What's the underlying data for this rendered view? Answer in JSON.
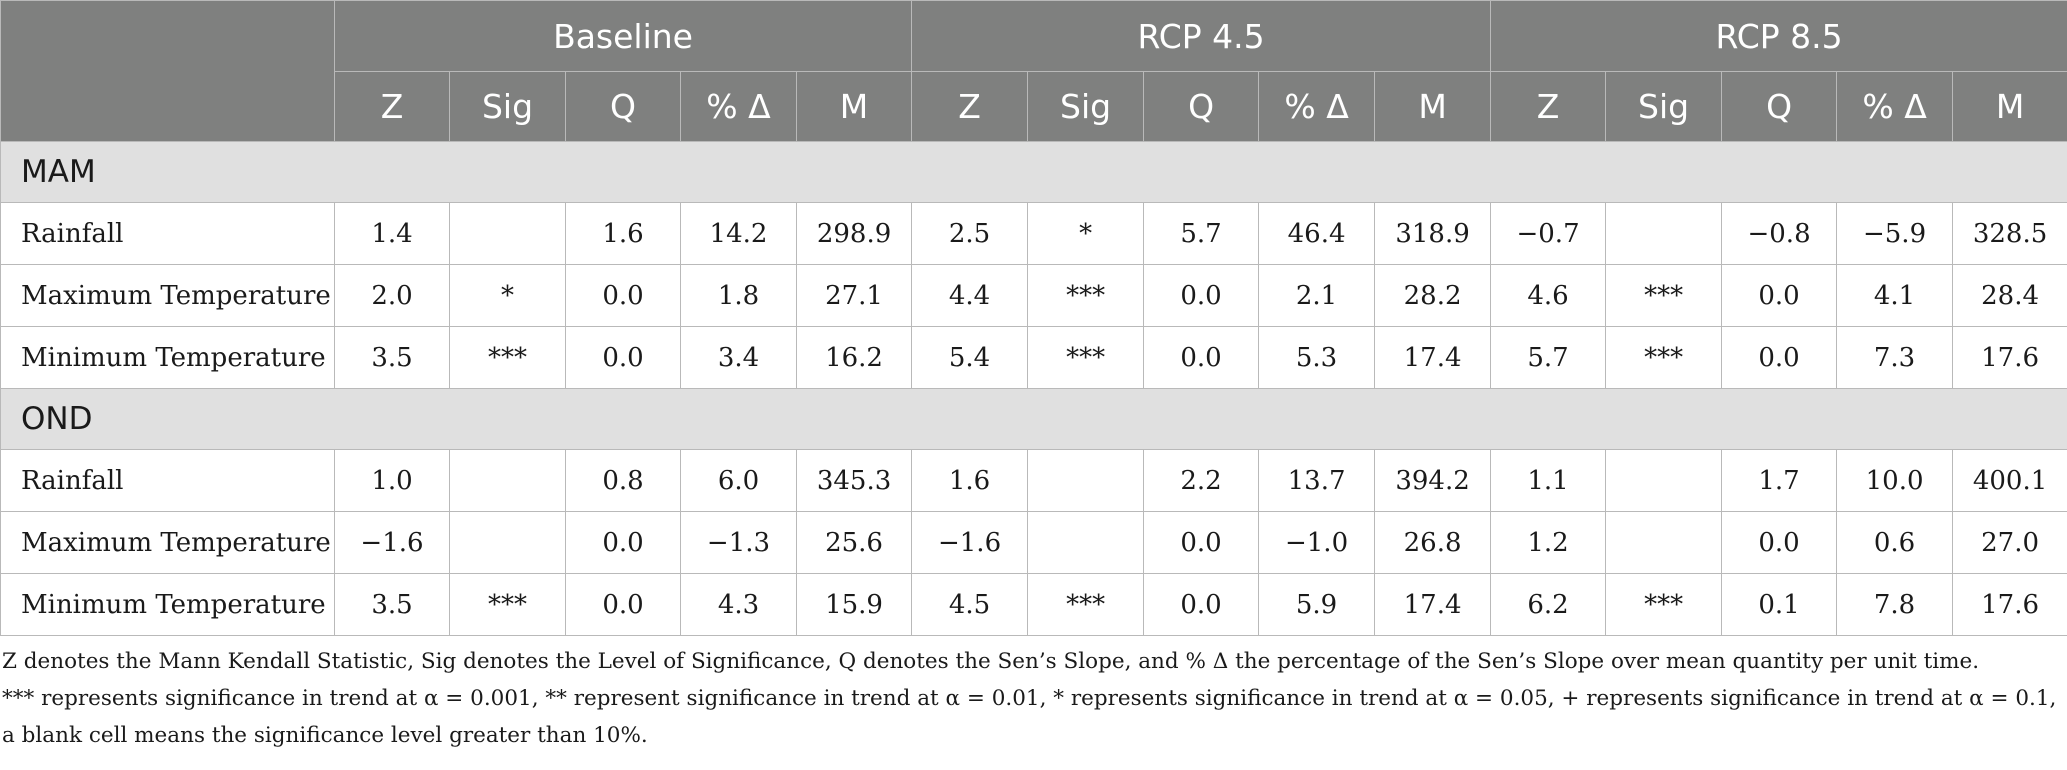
{
  "table": {
    "groups": [
      "Baseline",
      "RCP 4.5",
      "RCP 8.5"
    ],
    "subheaders": [
      "Z",
      "Sig",
      "Q",
      "% Δ",
      "M",
      "Z",
      "Sig",
      "Q",
      "% Δ",
      "M",
      "Z",
      "Sig",
      "Q",
      "% Δ",
      "M"
    ],
    "sections": [
      {
        "name": "MAM",
        "rows": [
          {
            "label": "Rainfall",
            "cells": [
              "1.4",
              "",
              "1.6",
              "14.2",
              "298.9",
              "2.5",
              "*",
              "5.7",
              "46.4",
              "318.9",
              "−0.7",
              "",
              "−0.8",
              "−5.9",
              "328.5"
            ]
          },
          {
            "label": "Maximum Temperature",
            "cells": [
              "2.0",
              "*",
              "0.0",
              "1.8",
              "27.1",
              "4.4",
              "***",
              "0.0",
              "2.1",
              "28.2",
              "4.6",
              "***",
              "0.0",
              "4.1",
              "28.4"
            ]
          },
          {
            "label": "Minimum Temperature",
            "cells": [
              "3.5",
              "***",
              "0.0",
              "3.4",
              "16.2",
              "5.4",
              "***",
              "0.0",
              "5.3",
              "17.4",
              "5.7",
              "***",
              "0.0",
              "7.3",
              "17.6"
            ]
          }
        ]
      },
      {
        "name": "OND",
        "rows": [
          {
            "label": "Rainfall",
            "cells": [
              "1.0",
              "",
              "0.8",
              "6.0",
              "345.3",
              "1.6",
              "",
              "2.2",
              "13.7",
              "394.2",
              "1.1",
              "",
              "1.7",
              "10.0",
              "400.1"
            ]
          },
          {
            "label": "Maximum Temperature",
            "cells": [
              "−1.6",
              "",
              "0.0",
              "−1.3",
              "25.6",
              "−1.6",
              "",
              "0.0",
              "−1.0",
              "26.8",
              "1.2",
              "",
              "0.0",
              "0.6",
              "27.0"
            ]
          },
          {
            "label": "Minimum Temperature",
            "cells": [
              "3.5",
              "***",
              "0.0",
              "4.3",
              "15.9",
              "4.5",
              "***",
              "0.0",
              "5.9",
              "17.4",
              "6.2",
              "***",
              "0.1",
              "7.8",
              "17.6"
            ]
          }
        ]
      }
    ]
  },
  "footnotes": [
    "Z denotes the Mann Kendall Statistic, Sig denotes the Level of Significance, Q denotes the Sen’s Slope, and % Δ the percentage of the Sen’s Slope over mean quantity per unit time.",
    "*** represents significance in trend at α = 0.001, ** represent significance in trend at α = 0.01, * represents significance in trend at α = 0.05, + represents significance in trend at α = 0.1, a blank cell means the significance level greater than 10%."
  ]
}
